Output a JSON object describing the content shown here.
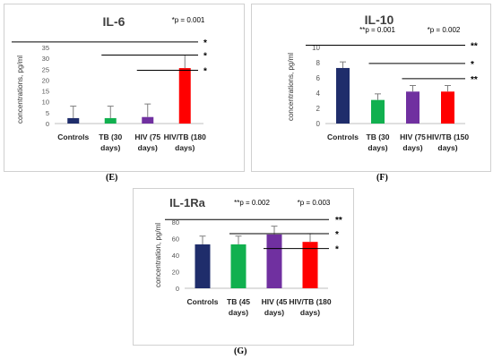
{
  "panels": [
    {
      "caption": "(E)",
      "title": "IL-6",
      "ylabel": "concentrations, pg/ml",
      "ylim": [
        0,
        35
      ],
      "yticks": [
        0,
        5,
        10,
        15,
        20,
        25,
        30,
        35
      ],
      "categories": [
        "Controls",
        "TB (30 days)",
        "HIV (75 days)",
        "HIV/TB (180 days)"
      ],
      "values": [
        2.5,
        2.5,
        3,
        25.5
      ],
      "errors": [
        5.5,
        5.5,
        6,
        6
      ],
      "colors": [
        "#1f2d6b",
        "#11b04f",
        "#7030a0",
        "#ff0000"
      ],
      "pvalues": [
        {
          "label": "*p = 0.001"
        }
      ],
      "brackets": [
        {
          "from": 0,
          "to": 3,
          "y": 37.5,
          "mark": "*"
        },
        {
          "from": 1,
          "to": 3,
          "y": 31.5,
          "mark": "*"
        },
        {
          "from": 2,
          "to": 3,
          "y": 24.5,
          "mark": "*"
        }
      ]
    },
    {
      "caption": "(F)",
      "title": "IL-10",
      "ylabel": "concentrations, pg/ml",
      "ylim": [
        0,
        10
      ],
      "yticks": [
        0,
        2,
        4,
        6,
        8,
        10
      ],
      "categories": [
        "Controls",
        "TB (30 days)",
        "HIV (75 days)",
        "HIV/TB (150 days)"
      ],
      "values": [
        7.3,
        3.1,
        4.2,
        4.2
      ],
      "errors": [
        0.8,
        0.8,
        0.8,
        0.8
      ],
      "colors": [
        "#1f2d6b",
        "#11b04f",
        "#7030a0",
        "#ff0000"
      ],
      "pvalues": [
        {
          "label": "**p = 0.001"
        },
        {
          "label": "*p = 0.002"
        }
      ],
      "brackets": [
        {
          "from": 0,
          "to": 3,
          "y": 10.3,
          "mark": "**"
        },
        {
          "from": 1,
          "to": 3,
          "y": 7.9,
          "mark": "*"
        },
        {
          "from": 2,
          "to": 3,
          "y": 5.9,
          "mark": "**"
        }
      ]
    },
    {
      "caption": "(G)",
      "title": "IL-1Ra",
      "ylabel": "concentration, pg/ml",
      "ylim": [
        0,
        80
      ],
      "yticks": [
        0,
        20,
        40,
        60,
        80
      ],
      "categories": [
        "Controls",
        "TB (45 days)",
        "HIV (45 days)",
        "HIV/TB (180 days)"
      ],
      "values": [
        53,
        53,
        65,
        56
      ],
      "errors": [
        10,
        10,
        10,
        10
      ],
      "colors": [
        "#1f2d6b",
        "#11b04f",
        "#7030a0",
        "#ff0000"
      ],
      "pvalues": [
        {
          "label": "**p = 0.002"
        },
        {
          "label": "*p = 0.003"
        }
      ],
      "brackets": [
        {
          "from": 0,
          "to": 3,
          "y": 83,
          "mark": "**"
        },
        {
          "from": 1,
          "to": 3,
          "y": 66,
          "mark": "*"
        },
        {
          "from": 2,
          "to": 3,
          "y": 48,
          "mark": "*"
        }
      ]
    }
  ],
  "chart_data": [
    {
      "type": "bar",
      "title": "IL-6",
      "ylabel": "concentrations, pg/ml",
      "categories": [
        "Controls",
        "TB (30 days)",
        "HIV (75 days)",
        "HIV/TB (180 days)"
      ],
      "values": [
        2.5,
        2.5,
        3,
        25.5
      ],
      "ylim": [
        0,
        35
      ]
    },
    {
      "type": "bar",
      "title": "IL-10",
      "ylabel": "concentrations, pg/ml",
      "categories": [
        "Controls",
        "TB (30 days)",
        "HIV (75 days)",
        "HIV/TB (150 days)"
      ],
      "values": [
        7.3,
        3.1,
        4.2,
        4.2
      ],
      "ylim": [
        0,
        10
      ]
    },
    {
      "type": "bar",
      "title": "IL-1Ra",
      "ylabel": "concentration, pg/ml",
      "categories": [
        "Controls",
        "TB (45 days)",
        "HIV (45 days)",
        "HIV/TB (180 days)"
      ],
      "values": [
        53,
        53,
        65,
        56
      ],
      "ylim": [
        0,
        80
      ]
    }
  ]
}
